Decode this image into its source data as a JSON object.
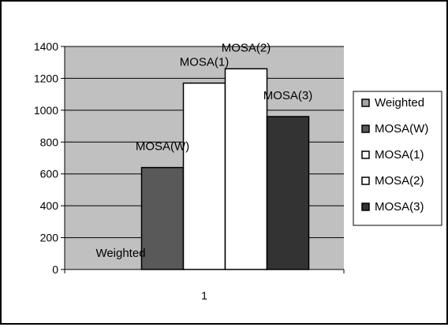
{
  "chart_data": {
    "type": "bar",
    "categories": [
      "1"
    ],
    "series": [
      {
        "name": "Weighted",
        "values": [
          0
        ],
        "color": "#a6a6a6",
        "data_label": "Weighted"
      },
      {
        "name": "MOSA(W)",
        "values": [
          640
        ],
        "color": "#595959",
        "data_label": "MOSA(W)"
      },
      {
        "name": "MOSA(1)",
        "values": [
          1170
        ],
        "color": "#ffffff",
        "data_label": "MOSA(1)"
      },
      {
        "name": "MOSA(2)",
        "values": [
          1260
        ],
        "color": "#ffffff",
        "data_label": "MOSA(2)"
      },
      {
        "name": "MOSA(3)",
        "values": [
          960
        ],
        "color": "#333333",
        "data_label": "MOSA(3)"
      }
    ],
    "yticks": [
      "0",
      "200",
      "400",
      "600",
      "800",
      "1000",
      "1200",
      "1400"
    ],
    "xtick_labels": [
      "1"
    ],
    "ylim": [
      0,
      1400
    ],
    "grid": true,
    "legend_position": "right",
    "plot_background": "#c0c0c0"
  }
}
